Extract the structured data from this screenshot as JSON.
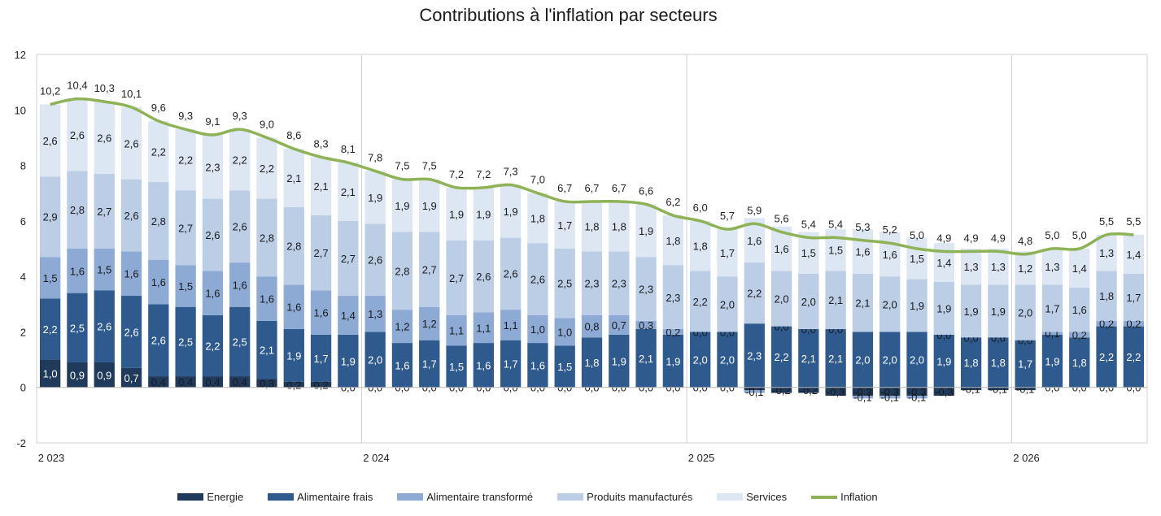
{
  "chart_data": {
    "type": "bar",
    "stacked": true,
    "title": "Contributions à l'inflation par secteurs",
    "ylim": [
      -2,
      12
    ],
    "y_ticks": [
      "-2",
      "0",
      "2",
      "4",
      "6",
      "8",
      "10",
      "12"
    ],
    "x_tick_labels": [
      {
        "label": "2 023",
        "at_index": 0
      },
      {
        "label": "2 024",
        "at_index": 12
      },
      {
        "label": "2 025",
        "at_index": 24
      },
      {
        "label": "2 026",
        "at_index": 36
      }
    ],
    "grid": true,
    "legend_position": "bottom",
    "series": [
      {
        "name": "Energie",
        "key": "energie",
        "color": "#1f3a5a",
        "values": [
          1.0,
          0.9,
          0.9,
          0.7,
          0.4,
          0.4,
          0.4,
          0.4,
          0.3,
          0.2,
          0.2,
          0,
          0,
          0,
          0,
          0,
          0,
          0,
          0,
          0,
          0,
          0,
          0,
          0,
          0,
          0,
          -0.1,
          -0.2,
          -0.2,
          -0.3,
          -0.3,
          -0.3,
          -0.3,
          -0.3,
          -0.1,
          -0.1,
          -0.1,
          0,
          0,
          0,
          0
        ]
      },
      {
        "name": "Alimentaire frais",
        "key": "frais",
        "color": "#2f5a8e",
        "values": [
          2.2,
          2.5,
          2.6,
          2.6,
          2.6,
          2.5,
          2.2,
          2.5,
          2.1,
          1.9,
          1.7,
          1.9,
          2.0,
          1.6,
          1.7,
          1.5,
          1.6,
          1.7,
          1.6,
          1.5,
          1.8,
          1.9,
          2.1,
          1.9,
          2.0,
          2.0,
          2.3,
          2.2,
          2.1,
          2.1,
          2.0,
          2.0,
          2.0,
          1.9,
          1.8,
          1.8,
          1.7,
          1.9,
          1.8,
          2.2,
          2.2
        ]
      },
      {
        "name": "Alimentaire transformé",
        "key": "transforme",
        "color": "#8caad4",
        "values": [
          1.5,
          1.6,
          1.5,
          1.6,
          1.6,
          1.5,
          1.6,
          1.6,
          1.6,
          1.6,
          1.6,
          1.4,
          1.3,
          1.2,
          1.2,
          1.1,
          1.1,
          1.1,
          1.0,
          1.0,
          0.8,
          0.7,
          0.3,
          0.2,
          0,
          0,
          -0.1,
          0,
          0,
          0,
          -0.1,
          -0.1,
          -0.1,
          0,
          0,
          0,
          0,
          0.1,
          0.2,
          0.2,
          0.2
        ]
      },
      {
        "name": "Produits manufacturés",
        "key": "manuf",
        "color": "#bccde6",
        "values": [
          2.9,
          2.8,
          2.7,
          2.6,
          2.8,
          2.7,
          2.6,
          2.6,
          2.8,
          2.8,
          2.7,
          2.7,
          2.6,
          2.8,
          2.7,
          2.7,
          2.6,
          2.6,
          2.6,
          2.5,
          2.3,
          2.3,
          2.3,
          2.3,
          2.2,
          2.0,
          2.2,
          2.0,
          2.0,
          2.1,
          2.1,
          2.0,
          1.9,
          1.9,
          1.9,
          1.9,
          2.0,
          1.7,
          1.6,
          1.8,
          1.7
        ]
      },
      {
        "name": "Services",
        "key": "services",
        "color": "#dde6f3",
        "values": [
          2.6,
          2.6,
          2.6,
          2.6,
          2.2,
          2.2,
          2.3,
          2.2,
          2.2,
          2.1,
          2.1,
          2.1,
          1.9,
          1.9,
          1.9,
          1.9,
          1.9,
          1.9,
          1.8,
          1.7,
          1.8,
          1.8,
          1.9,
          1.8,
          1.8,
          1.7,
          1.6,
          1.6,
          1.5,
          1.5,
          1.6,
          1.6,
          1.5,
          1.4,
          1.3,
          1.3,
          1.2,
          1.3,
          1.4,
          1.3,
          1.4
        ]
      }
    ],
    "labels": {
      "energie": [
        "1,0",
        "0,9",
        "0,9",
        "0,7",
        "0,4",
        "0,4",
        "0,4",
        "0,4",
        "0,3",
        "0,2",
        "0,2",
        "0,0",
        "0,0",
        "0,0",
        "0,0",
        "0,0",
        "0,0",
        "0,0",
        "0,0",
        "0,0",
        "0,0",
        "0,0",
        "0,0",
        "0,0",
        "0,0",
        "0,0",
        "-0,1",
        "-0,2",
        "-0,2",
        "-0,3",
        "-0,3",
        "-0,3",
        "-0,3",
        "-0,3",
        "-0,1",
        "-0,1",
        "-0,1",
        "0,0",
        "0,0",
        "0,0",
        "0,0"
      ],
      "frais": [
        "2,2",
        "2,5",
        "2,6",
        "2,6",
        "2,6",
        "2,5",
        "2,2",
        "2,5",
        "2,1",
        "1,9",
        "1,7",
        "1,9",
        "2,0",
        "1,6",
        "1,7",
        "1,5",
        "1,6",
        "1,7",
        "1,6",
        "1,5",
        "1,8",
        "1,9",
        "2,1",
        "1,9",
        "2,0",
        "2,0",
        "2,3",
        "2,2",
        "2,1",
        "2,1",
        "2,0",
        "2,0",
        "2,0",
        "1,9",
        "1,8",
        "1,8",
        "1,7",
        "1,9",
        "1,8",
        "2,2",
        "2,2"
      ],
      "transforme": [
        "1,5",
        "1,6",
        "1,5",
        "1,6",
        "1,6",
        "1,5",
        "1,6",
        "1,6",
        "1,6",
        "1,6",
        "1,6",
        "1,4",
        "1,3",
        "1,2",
        "1,2",
        "1,1",
        "1,1",
        "1,1",
        "1,0",
        "1,0",
        "0,8",
        "0,7",
        "0,3",
        "0,2",
        "0,0",
        "0,0",
        "-0,1",
        "0,0",
        "0,0",
        "0,0",
        "-0,1",
        "-0,1",
        "-0,1",
        "0,0",
        "0,0",
        "0,0",
        "0,0",
        "0,1",
        "0,2",
        "0,2",
        "0,2"
      ],
      "manuf": [
        "2,9",
        "2,8",
        "2,7",
        "2,6",
        "2,8",
        "2,7",
        "2,6",
        "2,6",
        "2,8",
        "2,8",
        "2,7",
        "2,7",
        "2,6",
        "2,8",
        "2,7",
        "2,7",
        "2,6",
        "2,6",
        "2,6",
        "2,5",
        "2,3",
        "2,3",
        "2,3",
        "2,3",
        "2,2",
        "2,0",
        "2,2",
        "2,0",
        "2,0",
        "2,1",
        "2,1",
        "2,0",
        "1,9",
        "1,9",
        "1,9",
        "1,9",
        "2,0",
        "1,7",
        "1,6",
        "1,8",
        "1,7"
      ],
      "services": [
        "2,6",
        "2,6",
        "2,6",
        "2,6",
        "2,2",
        "2,2",
        "2,3",
        "2,2",
        "2,2",
        "2,1",
        "2,1",
        "2,1",
        "1,9",
        "1,9",
        "1,9",
        "1,9",
        "1,9",
        "1,9",
        "1,8",
        "1,7",
        "1,8",
        "1,8",
        "1,9",
        "1,8",
        "1,8",
        "1,7",
        "1,6",
        "1,6",
        "1,5",
        "1,5",
        "1,6",
        "1,6",
        "1,5",
        "1,4",
        "1,3",
        "1,3",
        "1,2",
        "1,3",
        "1,4",
        "1,3",
        "1,4"
      ]
    },
    "inflation": {
      "name": "Inflation",
      "color": "#8db356",
      "values": [
        10.2,
        10.4,
        10.3,
        10.1,
        9.6,
        9.3,
        9.1,
        9.3,
        9.0,
        8.6,
        8.3,
        8.1,
        7.8,
        7.5,
        7.5,
        7.2,
        7.2,
        7.3,
        7.0,
        6.7,
        6.7,
        6.7,
        6.6,
        6.2,
        6.0,
        5.7,
        5.9,
        5.6,
        5.4,
        5.4,
        5.3,
        5.2,
        5.0,
        4.9,
        4.9,
        4.9,
        4.8,
        5.0,
        5.0,
        5.5,
        5.5
      ],
      "labels": [
        "10,2",
        "10,4",
        "10,3",
        "10,1",
        "9,6",
        "9,3",
        "9,1",
        "9,3",
        "9,0",
        "8,6",
        "8,3",
        "8,1",
        "7,8",
        "7,5",
        "7,5",
        "7,2",
        "7,2",
        "7,3",
        "7,0",
        "6,7",
        "6,7",
        "6,7",
        "6,6",
        "6,2",
        "6,0",
        "5,7",
        "5,9",
        "5,6",
        "5,4",
        "5,4",
        "5,3",
        "5,2",
        "5,0",
        "4,9",
        "4,9",
        "4,9",
        "4,8",
        "5,0",
        "5,0",
        "5,5",
        "5,5"
      ]
    }
  }
}
